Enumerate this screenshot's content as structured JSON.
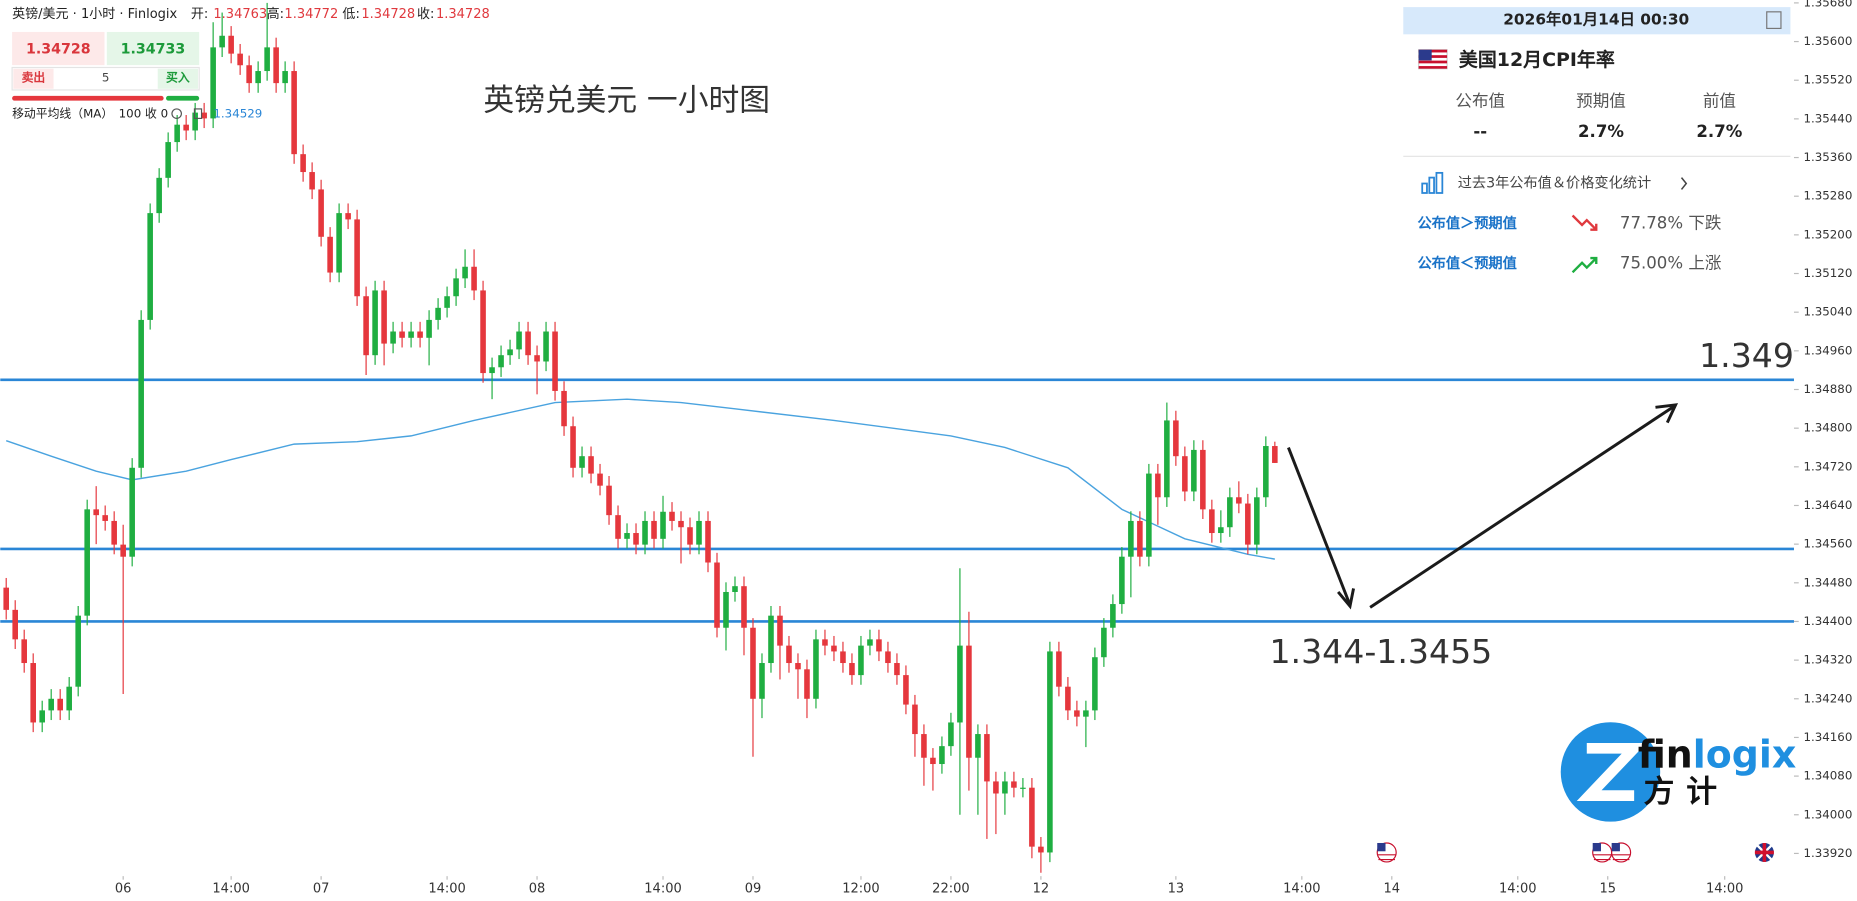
{
  "header": {
    "symbol": "英镑/美元 · 1小时 · Finlogix",
    "ohlc": [
      {
        "label": "开:",
        "value": "1.34763"
      },
      {
        "label": "高:",
        "value": "1.34772"
      },
      {
        "label": "低:",
        "value": "1.34728"
      },
      {
        "label": "收:",
        "value": "1.34728"
      }
    ]
  },
  "trade_widget": {
    "sell_price": "1.34728",
    "buy_price": "1.34733",
    "sell": "卖出",
    "quantity": "5",
    "buy": "买入"
  },
  "indicator": {
    "name": "移动平均线（MA）",
    "params": "100 收 0",
    "value": "1.34529"
  },
  "event_panel": {
    "datetime": "2026年01月14日 00:30",
    "event": "美国12月CPI年率",
    "columns": [
      {
        "label": "公布值",
        "value": "--"
      },
      {
        "label": "预期值",
        "value": "2.7%"
      },
      {
        "label": "前值",
        "value": "2.7%"
      }
    ],
    "stats_link": "过去3年公布值＆价格变化统计",
    "stats": [
      {
        "condition": "公布值＞预期值",
        "result": "77.78% 下跌"
      },
      {
        "condition": "公布值＜预期值",
        "result": "75.00% 上涨"
      }
    ]
  },
  "logo": {
    "fin": "fin",
    "logix": "logix",
    "cn": "方计"
  },
  "chart_data": {
    "type": "candlestick",
    "title": "英镑兑美元 一小时图",
    "up_color": "#1fae41",
    "down_color": "#e5373d",
    "ylim": [
      1.33873,
      1.35686
    ],
    "xlim": [
      -0.66,
      198.7
    ],
    "grid": false,
    "yticks": [
      {
        "value": 1.3568,
        "label": "1.35680"
      },
      {
        "value": 1.356,
        "label": "1.35600"
      },
      {
        "value": 1.3552,
        "label": "1.35520"
      },
      {
        "value": 1.3544,
        "label": "1.35440"
      },
      {
        "value": 1.3536,
        "label": "1.35360"
      },
      {
        "value": 1.3528,
        "label": "1.35280"
      },
      {
        "value": 1.352,
        "label": "1.35200"
      },
      {
        "value": 1.3512,
        "label": "1.35120"
      },
      {
        "value": 1.3504,
        "label": "1.35040"
      },
      {
        "value": 1.3496,
        "label": "1.34960"
      },
      {
        "value": 1.3488,
        "label": "1.34880"
      },
      {
        "value": 1.348,
        "label": "1.34800"
      },
      {
        "value": 1.3472,
        "label": "1.34720"
      },
      {
        "value": 1.3464,
        "label": "1.34640"
      },
      {
        "value": 1.3456,
        "label": "1.34560"
      },
      {
        "value": 1.3448,
        "label": "1.34480"
      },
      {
        "value": 1.344,
        "label": "1.34400"
      },
      {
        "value": 1.3432,
        "label": "1.34320"
      },
      {
        "value": 1.3424,
        "label": "1.34240"
      },
      {
        "value": 1.3416,
        "label": "1.34160"
      },
      {
        "value": 1.3408,
        "label": "1.34080"
      },
      {
        "value": 1.34,
        "label": "1.34000"
      },
      {
        "value": 1.3392,
        "label": "1.33920"
      }
    ],
    "xticks": [
      {
        "value": 13,
        "label": "06"
      },
      {
        "value": 25,
        "label": "14:00"
      },
      {
        "value": 35,
        "label": "07"
      },
      {
        "value": 49,
        "label": "14:00"
      },
      {
        "value": 59,
        "label": "08"
      },
      {
        "value": 73,
        "label": "14:00"
      },
      {
        "value": 83,
        "label": "09"
      },
      {
        "value": 95,
        "label": "12:00"
      },
      {
        "value": 105,
        "label": "22:00"
      },
      {
        "value": 115,
        "label": "12"
      },
      {
        "value": 130,
        "label": "13"
      },
      {
        "value": 144,
        "label": "14:00"
      },
      {
        "value": 154,
        "label": "14"
      },
      {
        "value": 168,
        "label": "14:00"
      },
      {
        "value": 178,
        "label": "15"
      },
      {
        "value": 191,
        "label": "14:00"
      }
    ],
    "open": [
      1.3447,
      1.34424,
      1.34363,
      1.34314,
      1.34191,
      1.34216,
      1.3424,
      1.34216,
      1.34265,
      1.34412,
      1.34632,
      1.3462,
      1.34608,
      1.34559,
      1.34534,
      1.34718,
      1.35024,
      1.35245,
      1.35318,
      1.35392,
      1.35428,
      1.35416,
      1.35453,
      1.35441,
      1.35588,
      1.35612,
      1.35575,
      1.35551,
      1.35514,
      1.35539,
      1.35588,
      1.35514,
      1.35539,
      1.35367,
      1.3533,
      1.35294,
      1.35196,
      1.35122,
      1.35245,
      1.35232,
      1.35073,
      1.34951,
      1.35085,
      1.34975,
      1.35,
      1.34987,
      1.35,
      1.34987,
      1.35024,
      1.35049,
      1.35073,
      1.3511,
      1.35134,
      1.35085,
      1.34914,
      1.34926,
      1.34951,
      1.34963,
      1.35,
      1.34951,
      1.34938,
      1.35,
      1.34877,
      1.34804,
      1.34718,
      1.34742,
      1.34706,
      1.34681,
      1.3462,
      1.34571,
      1.34583,
      1.34559,
      1.34608,
      1.34571,
      1.34627,
      1.34608,
      1.34595,
      1.34559,
      1.34608,
      1.34522,
      1.34387,
      1.34461,
      1.34473,
      1.34387,
      1.3424,
      1.34314,
      1.34412,
      1.3435,
      1.34314,
      1.34301,
      1.3424,
      1.34363,
      1.3435,
      1.34338,
      1.34314,
      1.34289,
      1.3435,
      1.34363,
      1.34338,
      1.34314,
      1.34289,
      1.34228,
      1.34167,
      1.34118,
      1.34105,
      1.34142,
      1.34191,
      1.3435,
      1.34118,
      1.34167,
      1.34069,
      1.34044,
      1.34069,
      1.34056,
      1.34056,
      1.33934,
      1.33922,
      1.34338,
      1.34265,
      1.34216,
      1.34203,
      1.34216,
      1.34326,
      1.34387,
      1.34436,
      1.34534,
      1.34608,
      1.34534,
      1.34706,
      1.34657,
      1.34816,
      1.34742,
      1.34669,
      1.34755,
      1.34632,
      1.34583,
      1.34595,
      1.34657,
      1.34644,
      1.34559,
      1.34657,
      1.34763
    ],
    "high": [
      1.3449,
      1.34444,
      1.34383,
      1.34334,
      1.34236,
      1.3426,
      1.3426,
      1.34285,
      1.34432,
      1.34652,
      1.3468,
      1.3464,
      1.34628,
      1.346,
      1.34738,
      1.35044,
      1.35265,
      1.35338,
      1.35412,
      1.35448,
      1.35448,
      1.35473,
      1.35473,
      1.3564,
      1.3566,
      1.35632,
      1.35595,
      1.35571,
      1.35559,
      1.3568,
      1.35608,
      1.35559,
      1.35559,
      1.35387,
      1.3535,
      1.35314,
      1.35216,
      1.35265,
      1.35265,
      1.35252,
      1.35093,
      1.35105,
      1.35105,
      1.3502,
      1.3502,
      1.3502,
      1.3502,
      1.35044,
      1.35069,
      1.35093,
      1.3513,
      1.3517,
      1.3517,
      1.35105,
      1.34946,
      1.34971,
      1.34983,
      1.3502,
      1.3502,
      1.34971,
      1.3502,
      1.3502,
      1.34897,
      1.34824,
      1.34762,
      1.34762,
      1.34726,
      1.34701,
      1.3464,
      1.34603,
      1.34603,
      1.34628,
      1.34628,
      1.3466,
      1.34647,
      1.34628,
      1.34615,
      1.34628,
      1.34628,
      1.34542,
      1.34481,
      1.34493,
      1.34493,
      1.34407,
      1.34334,
      1.34432,
      1.34432,
      1.3437,
      1.34334,
      1.34321,
      1.34383,
      1.34383,
      1.3437,
      1.34358,
      1.34334,
      1.3437,
      1.34383,
      1.34383,
      1.34358,
      1.34334,
      1.34309,
      1.34248,
      1.34187,
      1.34138,
      1.34162,
      1.34211,
      1.3451,
      1.3442,
      1.34187,
      1.34187,
      1.34089,
      1.34089,
      1.34089,
      1.34076,
      1.34076,
      1.33954,
      1.34358,
      1.34358,
      1.34285,
      1.34236,
      1.34236,
      1.34346,
      1.34407,
      1.34456,
      1.34554,
      1.34628,
      1.34628,
      1.34726,
      1.34726,
      1.34853,
      1.34836,
      1.34762,
      1.34775,
      1.34775,
      1.34652,
      1.3463,
      1.34677,
      1.3469,
      1.34664,
      1.34677,
      1.34783,
      1.34772
    ],
    "low": [
      1.34404,
      1.34343,
      1.34294,
      1.34171,
      1.34171,
      1.34196,
      1.34196,
      1.34196,
      1.34245,
      1.34392,
      1.3456,
      1.34588,
      1.34539,
      1.3425,
      1.34514,
      1.34698,
      1.35004,
      1.35225,
      1.35298,
      1.35372,
      1.35396,
      1.35396,
      1.35421,
      1.35421,
      1.35568,
      1.35555,
      1.35531,
      1.35494,
      1.35494,
      1.35519,
      1.35494,
      1.35494,
      1.35347,
      1.3531,
      1.35274,
      1.35176,
      1.35102,
      1.35102,
      1.35212,
      1.35053,
      1.3491,
      1.34931,
      1.3493,
      1.34955,
      1.34967,
      1.34967,
      1.34967,
      1.3493,
      1.35004,
      1.35029,
      1.35053,
      1.3509,
      1.35065,
      1.34894,
      1.3486,
      1.34906,
      1.34931,
      1.34943,
      1.34931,
      1.3487,
      1.34918,
      1.34857,
      1.34784,
      1.34698,
      1.34698,
      1.34686,
      1.34661,
      1.346,
      1.34551,
      1.34551,
      1.34539,
      1.34539,
      1.34551,
      1.34551,
      1.34588,
      1.3452,
      1.34539,
      1.34539,
      1.34502,
      1.34367,
      1.3434,
      1.34441,
      1.3433,
      1.3412,
      1.342,
      1.34294,
      1.3428,
      1.34294,
      1.3424,
      1.342,
      1.3422,
      1.3433,
      1.34318,
      1.34294,
      1.34269,
      1.34269,
      1.3433,
      1.34318,
      1.34294,
      1.34269,
      1.34208,
      1.3412,
      1.3406,
      1.3405,
      1.34085,
      1.34122,
      1.34,
      1.3405,
      1.34,
      1.3395,
      1.3396,
      1.34,
      1.34036,
      1.34036,
      1.3391,
      1.3388,
      1.33902,
      1.34245,
      1.34196,
      1.34183,
      1.3414,
      1.34196,
      1.34306,
      1.34367,
      1.34416,
      1.3445,
      1.34514,
      1.34514,
      1.346,
      1.34637,
      1.34722,
      1.34649,
      1.34649,
      1.34612,
      1.34563,
      1.34563,
      1.34575,
      1.34624,
      1.34539,
      1.34539,
      1.34637,
      1.34728
    ],
    "close": [
      1.34424,
      1.34363,
      1.34314,
      1.34191,
      1.34216,
      1.3424,
      1.34216,
      1.34265,
      1.34412,
      1.34632,
      1.3462,
      1.34608,
      1.34559,
      1.34534,
      1.34718,
      1.35024,
      1.35245,
      1.35318,
      1.35392,
      1.35428,
      1.35416,
      1.35453,
      1.35441,
      1.35588,
      1.35612,
      1.35575,
      1.35551,
      1.35514,
      1.35539,
      1.35588,
      1.35514,
      1.35539,
      1.35367,
      1.3533,
      1.35294,
      1.35196,
      1.35122,
      1.35245,
      1.35232,
      1.35073,
      1.34951,
      1.35085,
      1.34975,
      1.35,
      1.34987,
      1.35,
      1.34987,
      1.35024,
      1.35049,
      1.35073,
      1.3511,
      1.35134,
      1.35085,
      1.34914,
      1.34926,
      1.34951,
      1.34963,
      1.35,
      1.34951,
      1.34938,
      1.35,
      1.34877,
      1.34804,
      1.34718,
      1.34742,
      1.34706,
      1.34681,
      1.3462,
      1.34571,
      1.34583,
      1.34559,
      1.34608,
      1.34571,
      1.34627,
      1.34608,
      1.34595,
      1.34559,
      1.34608,
      1.34522,
      1.34387,
      1.34461,
      1.34473,
      1.34387,
      1.3424,
      1.34314,
      1.34412,
      1.3435,
      1.34314,
      1.34301,
      1.3424,
      1.34363,
      1.3435,
      1.34338,
      1.34314,
      1.34289,
      1.3435,
      1.34363,
      1.34338,
      1.34314,
      1.34289,
      1.34228,
      1.34167,
      1.34118,
      1.34105,
      1.34142,
      1.34191,
      1.3435,
      1.34118,
      1.34167,
      1.34069,
      1.34044,
      1.34069,
      1.34056,
      1.34056,
      1.33934,
      1.33922,
      1.34338,
      1.34265,
      1.34216,
      1.34203,
      1.34216,
      1.34326,
      1.34387,
      1.34436,
      1.34534,
      1.34608,
      1.34534,
      1.34706,
      1.34657,
      1.34816,
      1.34742,
      1.34669,
      1.34755,
      1.34632,
      1.34583,
      1.34595,
      1.34657,
      1.34644,
      1.34559,
      1.34657,
      1.34763,
      1.34728
    ],
    "ma": {
      "color": "#4aa3df",
      "x": [
        0,
        5,
        10,
        14,
        20,
        25,
        32,
        39,
        45,
        52,
        61,
        69,
        75,
        81,
        92,
        105,
        111,
        118,
        124,
        131,
        138,
        141
      ],
      "values": [
        1.34774,
        1.34742,
        1.34711,
        1.34693,
        1.34711,
        1.34735,
        1.34767,
        1.34772,
        1.34784,
        1.34816,
        1.34853,
        1.3486,
        1.34853,
        1.3484,
        1.34816,
        1.34784,
        1.3476,
        1.34718,
        1.34632,
        1.34571,
        1.34539,
        1.34529
      ]
    },
    "hlines": {
      "color": "#2a86d6",
      "values": [
        1.349,
        1.3455,
        1.344
      ]
    },
    "annotations": [
      {
        "text": "1.349"
      },
      {
        "text": "1.344-1.3455"
      }
    ]
  }
}
